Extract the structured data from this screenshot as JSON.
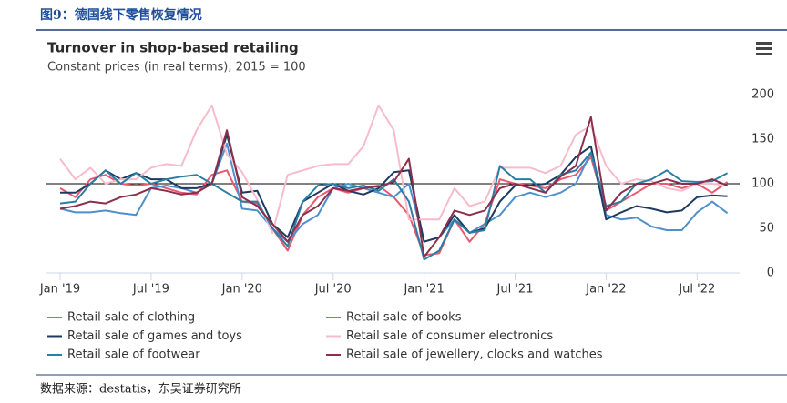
{
  "caption": "图9：德国线下零售恢复情况",
  "source": "数据来源：destatis，东吴证券研究所",
  "chart_data": {
    "type": "line",
    "title": "Turnover in shop-based retailing",
    "subtitle": "Constant prices (in real terms), 2015 = 100",
    "x": [
      "2019-01",
      "2019-02",
      "2019-03",
      "2019-04",
      "2019-05",
      "2019-06",
      "2019-07",
      "2019-08",
      "2019-09",
      "2019-10",
      "2019-11",
      "2019-12",
      "2020-01",
      "2020-02",
      "2020-03",
      "2020-04",
      "2020-05",
      "2020-06",
      "2020-07",
      "2020-08",
      "2020-09",
      "2020-10",
      "2020-11",
      "2020-12",
      "2021-01",
      "2021-02",
      "2021-03",
      "2021-04",
      "2021-05",
      "2021-06",
      "2021-07",
      "2021-08",
      "2021-09",
      "2021-10",
      "2021-11",
      "2021-12",
      "2022-01",
      "2022-02",
      "2022-03",
      "2022-04",
      "2022-05",
      "2022-06",
      "2022-07",
      "2022-08",
      "2022-09"
    ],
    "xticks": [
      {
        "value": "2019-01",
        "label": "Jan '19"
      },
      {
        "value": "2019-07",
        "label": "Jul '19"
      },
      {
        "value": "2020-01",
        "label": "Jan '20"
      },
      {
        "value": "2020-07",
        "label": "Jul '20"
      },
      {
        "value": "2021-01",
        "label": "Jan '21"
      },
      {
        "value": "2021-07",
        "label": "Jul '21"
      },
      {
        "value": "2022-01",
        "label": "Jan '22"
      },
      {
        "value": "2022-07",
        "label": "Jul '22"
      }
    ],
    "ylim": [
      0,
      200
    ],
    "yticks": [
      0,
      50,
      100,
      150,
      200
    ],
    "grid": false,
    "reference_line": 100,
    "series": [
      {
        "name": "Retail sale of clothing",
        "color": "#e8586f",
        "values": [
          95,
          85,
          105,
          110,
          100,
          98,
          100,
          95,
          90,
          88,
          110,
          115,
          80,
          78,
          50,
          25,
          65,
          85,
          95,
          90,
          95,
          98,
          85,
          65,
          20,
          22,
          60,
          35,
          55,
          105,
          100,
          98,
          95,
          105,
          110,
          130,
          70,
          80,
          90,
          100,
          100,
          95,
          100,
          90,
          102
        ]
      },
      {
        "name": "Retail sale of books",
        "color": "#4e8fcc",
        "values": [
          72,
          68,
          68,
          70,
          67,
          65,
          95,
          98,
          95,
          90,
          100,
          145,
          72,
          70,
          50,
          35,
          55,
          65,
          95,
          100,
          95,
          90,
          85,
          100,
          35,
          40,
          60,
          45,
          55,
          65,
          85,
          90,
          85,
          90,
          100,
          135,
          65,
          60,
          62,
          52,
          48,
          48,
          68,
          80,
          67
        ]
      },
      {
        "name": "Retail sale of games and toys",
        "color": "#1d3a5f",
        "values": [
          90,
          90,
          100,
          115,
          105,
          112,
          105,
          105,
          95,
          95,
          100,
          155,
          90,
          92,
          55,
          40,
          80,
          90,
          100,
          92,
          88,
          95,
          113,
          115,
          35,
          40,
          65,
          45,
          50,
          80,
          98,
          98,
          100,
          110,
          130,
          142,
          60,
          68,
          75,
          72,
          68,
          70,
          85,
          87,
          86
        ]
      },
      {
        "name": "Retail sale of consumer electronics",
        "color": "#f7bcc9",
        "values": [
          128,
          105,
          118,
          100,
          105,
          105,
          118,
          122,
          120,
          160,
          188,
          133,
          113,
          82,
          45,
          110,
          115,
          120,
          122,
          122,
          142,
          188,
          160,
          60,
          60,
          60,
          95,
          75,
          80,
          118,
          118,
          118,
          112,
          120,
          155,
          165,
          120,
          100,
          105,
          103,
          95,
          92,
          100,
          100,
          98
        ]
      },
      {
        "name": "Retail sale of footwear",
        "color": "#2b7ea3",
        "values": [
          78,
          80,
          100,
          115,
          100,
          112,
          100,
          105,
          108,
          110,
          100,
          90,
          80,
          80,
          50,
          30,
          80,
          98,
          100,
          95,
          98,
          92,
          105,
          80,
          15,
          25,
          60,
          45,
          48,
          120,
          105,
          105,
          90,
          110,
          115,
          135,
          75,
          80,
          100,
          105,
          115,
          103,
          102,
          103,
          112
        ]
      },
      {
        "name": "Retail sale of jewellery, clocks and watches",
        "color": "#8a2f4c",
        "values": [
          72,
          75,
          80,
          78,
          85,
          88,
          95,
          92,
          88,
          90,
          100,
          160,
          85,
          75,
          55,
          35,
          65,
          75,
          95,
          92,
          95,
          97,
          102,
          128,
          18,
          40,
          70,
          65,
          70,
          95,
          100,
          95,
          90,
          108,
          120,
          175,
          70,
          90,
          100,
          100,
          105,
          100,
          100,
          105,
          98
        ]
      }
    ]
  }
}
